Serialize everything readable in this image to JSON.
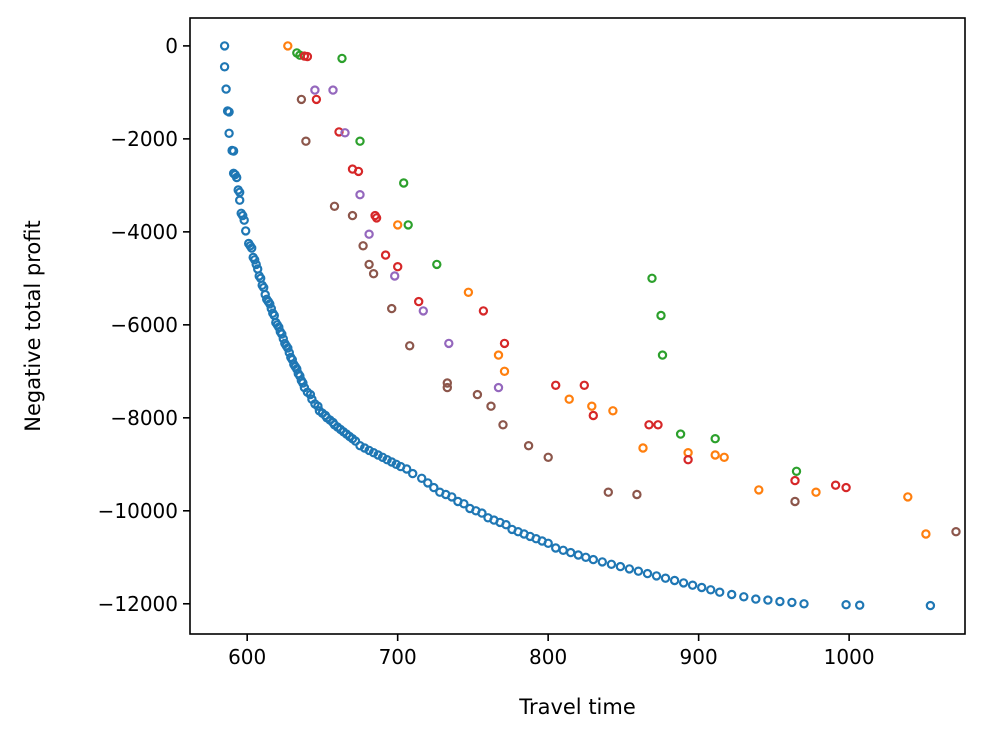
{
  "chart_data": {
    "type": "scatter",
    "title": "",
    "xlabel": "Travel time",
    "ylabel": "Negative total profit",
    "xlim": [
      562,
      1077
    ],
    "ylim": [
      -12650,
      600
    ],
    "xticks": [
      600,
      700,
      800,
      900,
      1000
    ],
    "yticks": [
      0,
      -2000,
      -4000,
      -6000,
      -8000,
      -10000,
      -12000
    ],
    "xtick_labels": [
      "600",
      "700",
      "800",
      "900",
      "1000"
    ],
    "ytick_labels": [
      "0",
      "−2000",
      "−4000",
      "−6000",
      "−8000",
      "−10000",
      "−12000"
    ],
    "grid": false,
    "legend": "none",
    "marker": "hollow-circle",
    "series": [
      {
        "color": "#1f77b4",
        "points": [
          [
            585,
            0
          ],
          [
            585,
            -450
          ],
          [
            586,
            -930
          ],
          [
            587,
            -1400
          ],
          [
            588,
            -1420
          ],
          [
            588,
            -1880
          ],
          [
            590,
            -2250
          ],
          [
            591,
            -2260
          ],
          [
            591,
            -2740
          ],
          [
            592,
            -2770
          ],
          [
            593,
            -2830
          ],
          [
            594,
            -3100
          ],
          [
            595,
            -3150
          ],
          [
            595,
            -3320
          ],
          [
            596,
            -3600
          ],
          [
            597,
            -3650
          ],
          [
            598,
            -3750
          ],
          [
            599,
            -3980
          ],
          [
            601,
            -4250
          ],
          [
            602,
            -4300
          ],
          [
            603,
            -4350
          ],
          [
            604,
            -4550
          ],
          [
            605,
            -4600
          ],
          [
            606,
            -4700
          ],
          [
            607,
            -4800
          ],
          [
            608,
            -4950
          ],
          [
            609,
            -5000
          ],
          [
            610,
            -5150
          ],
          [
            611,
            -5200
          ],
          [
            612,
            -5350
          ],
          [
            613,
            -5450
          ],
          [
            614,
            -5500
          ],
          [
            615,
            -5550
          ],
          [
            616,
            -5650
          ],
          [
            617,
            -5750
          ],
          [
            618,
            -5800
          ],
          [
            619,
            -5950
          ],
          [
            620,
            -6000
          ],
          [
            621,
            -6050
          ],
          [
            622,
            -6150
          ],
          [
            623,
            -6200
          ],
          [
            624,
            -6300
          ],
          [
            625,
            -6400
          ],
          [
            626,
            -6450
          ],
          [
            627,
            -6500
          ],
          [
            628,
            -6600
          ],
          [
            629,
            -6700
          ],
          [
            630,
            -6750
          ],
          [
            631,
            -6850
          ],
          [
            632,
            -6900
          ],
          [
            633,
            -6950
          ],
          [
            634,
            -7050
          ],
          [
            635,
            -7100
          ],
          [
            636,
            -7200
          ],
          [
            637,
            -7250
          ],
          [
            638,
            -7350
          ],
          [
            640,
            -7450
          ],
          [
            642,
            -7500
          ],
          [
            643,
            -7600
          ],
          [
            645,
            -7700
          ],
          [
            647,
            -7750
          ],
          [
            648,
            -7850
          ],
          [
            650,
            -7900
          ],
          [
            652,
            -7950
          ],
          [
            653,
            -8000
          ],
          [
            655,
            -8050
          ],
          [
            657,
            -8100
          ],
          [
            658,
            -8150
          ],
          [
            660,
            -8200
          ],
          [
            662,
            -8250
          ],
          [
            664,
            -8300
          ],
          [
            666,
            -8350
          ],
          [
            668,
            -8400
          ],
          [
            670,
            -8450
          ],
          [
            672,
            -8500
          ],
          [
            675,
            -8600
          ],
          [
            678,
            -8650
          ],
          [
            681,
            -8700
          ],
          [
            684,
            -8750
          ],
          [
            687,
            -8800
          ],
          [
            690,
            -8850
          ],
          [
            693,
            -8900
          ],
          [
            696,
            -8950
          ],
          [
            699,
            -9000
          ],
          [
            702,
            -9050
          ],
          [
            706,
            -9100
          ],
          [
            710,
            -9200
          ],
          [
            716,
            -9300
          ],
          [
            720,
            -9400
          ],
          [
            724,
            -9500
          ],
          [
            728,
            -9600
          ],
          [
            732,
            -9650
          ],
          [
            736,
            -9700
          ],
          [
            740,
            -9800
          ],
          [
            744,
            -9850
          ],
          [
            748,
            -9950
          ],
          [
            752,
            -10000
          ],
          [
            756,
            -10050
          ],
          [
            760,
            -10150
          ],
          [
            764,
            -10200
          ],
          [
            768,
            -10250
          ],
          [
            772,
            -10300
          ],
          [
            776,
            -10400
          ],
          [
            780,
            -10450
          ],
          [
            784,
            -10500
          ],
          [
            788,
            -10550
          ],
          [
            792,
            -10600
          ],
          [
            796,
            -10650
          ],
          [
            800,
            -10700
          ],
          [
            805,
            -10800
          ],
          [
            810,
            -10850
          ],
          [
            815,
            -10900
          ],
          [
            820,
            -10950
          ],
          [
            825,
            -11000
          ],
          [
            830,
            -11050
          ],
          [
            836,
            -11100
          ],
          [
            842,
            -11150
          ],
          [
            848,
            -11200
          ],
          [
            854,
            -11250
          ],
          [
            860,
            -11300
          ],
          [
            866,
            -11350
          ],
          [
            872,
            -11400
          ],
          [
            878,
            -11450
          ],
          [
            884,
            -11500
          ],
          [
            890,
            -11550
          ],
          [
            896,
            -11600
          ],
          [
            902,
            -11650
          ],
          [
            908,
            -11700
          ],
          [
            914,
            -11750
          ],
          [
            922,
            -11800
          ],
          [
            930,
            -11850
          ],
          [
            938,
            -11900
          ],
          [
            946,
            -11920
          ],
          [
            954,
            -11950
          ],
          [
            962,
            -11970
          ],
          [
            970,
            -12000
          ],
          [
            998,
            -12020
          ],
          [
            1007,
            -12030
          ],
          [
            1054,
            -12040
          ]
        ]
      },
      {
        "color": "#ff7f0e",
        "points": [
          [
            627,
            0
          ],
          [
            700,
            -3850
          ],
          [
            747,
            -5300
          ],
          [
            767,
            -6650
          ],
          [
            771,
            -7000
          ],
          [
            814,
            -7600
          ],
          [
            829,
            -7750
          ],
          [
            843,
            -7850
          ],
          [
            863,
            -8650
          ],
          [
            893,
            -8750
          ],
          [
            911,
            -8800
          ],
          [
            917,
            -8850
          ],
          [
            940,
            -9550
          ],
          [
            978,
            -9600
          ],
          [
            1039,
            -9700
          ],
          [
            1051,
            -10500
          ]
        ]
      },
      {
        "color": "#2ca02c",
        "points": [
          [
            633,
            -150
          ],
          [
            635,
            -200
          ],
          [
            663,
            -270
          ],
          [
            675,
            -2050
          ],
          [
            704,
            -2950
          ],
          [
            707,
            -3850
          ],
          [
            726,
            -4700
          ],
          [
            869,
            -5000
          ],
          [
            875,
            -5800
          ],
          [
            876,
            -6650
          ],
          [
            888,
            -8350
          ],
          [
            911,
            -8450
          ],
          [
            965,
            -9150
          ]
        ]
      },
      {
        "color": "#d62728",
        "points": [
          [
            638,
            -220
          ],
          [
            640,
            -230
          ],
          [
            646,
            -1150
          ],
          [
            661,
            -1850
          ],
          [
            670,
            -2650
          ],
          [
            674,
            -2700
          ],
          [
            685,
            -3650
          ],
          [
            686,
            -3700
          ],
          [
            692,
            -4500
          ],
          [
            700,
            -4750
          ],
          [
            714,
            -5500
          ],
          [
            757,
            -5700
          ],
          [
            771,
            -6400
          ],
          [
            805,
            -7300
          ],
          [
            824,
            -7300
          ],
          [
            830,
            -7950
          ],
          [
            867,
            -8150
          ],
          [
            873,
            -8150
          ],
          [
            893,
            -8900
          ],
          [
            964,
            -9350
          ],
          [
            991,
            -9450
          ],
          [
            998,
            -9500
          ]
        ]
      },
      {
        "color": "#9467bd",
        "points": [
          [
            645,
            -950
          ],
          [
            657,
            -950
          ],
          [
            665,
            -1870
          ],
          [
            675,
            -3200
          ],
          [
            681,
            -4050
          ],
          [
            698,
            -4950
          ],
          [
            717,
            -5700
          ],
          [
            734,
            -6400
          ],
          [
            767,
            -7350
          ]
        ]
      },
      {
        "color": "#8c564b",
        "points": [
          [
            636,
            -1150
          ],
          [
            639,
            -2050
          ],
          [
            658,
            -3450
          ],
          [
            670,
            -3650
          ],
          [
            677,
            -4300
          ],
          [
            681,
            -4700
          ],
          [
            684,
            -4900
          ],
          [
            696,
            -5650
          ],
          [
            708,
            -6450
          ],
          [
            733,
            -7250
          ],
          [
            733,
            -7350
          ],
          [
            753,
            -7500
          ],
          [
            762,
            -7750
          ],
          [
            770,
            -8150
          ],
          [
            787,
            -8600
          ],
          [
            800,
            -8850
          ],
          [
            840,
            -9600
          ],
          [
            859,
            -9650
          ],
          [
            964,
            -9800
          ],
          [
            1071,
            -10450
          ]
        ]
      }
    ]
  }
}
